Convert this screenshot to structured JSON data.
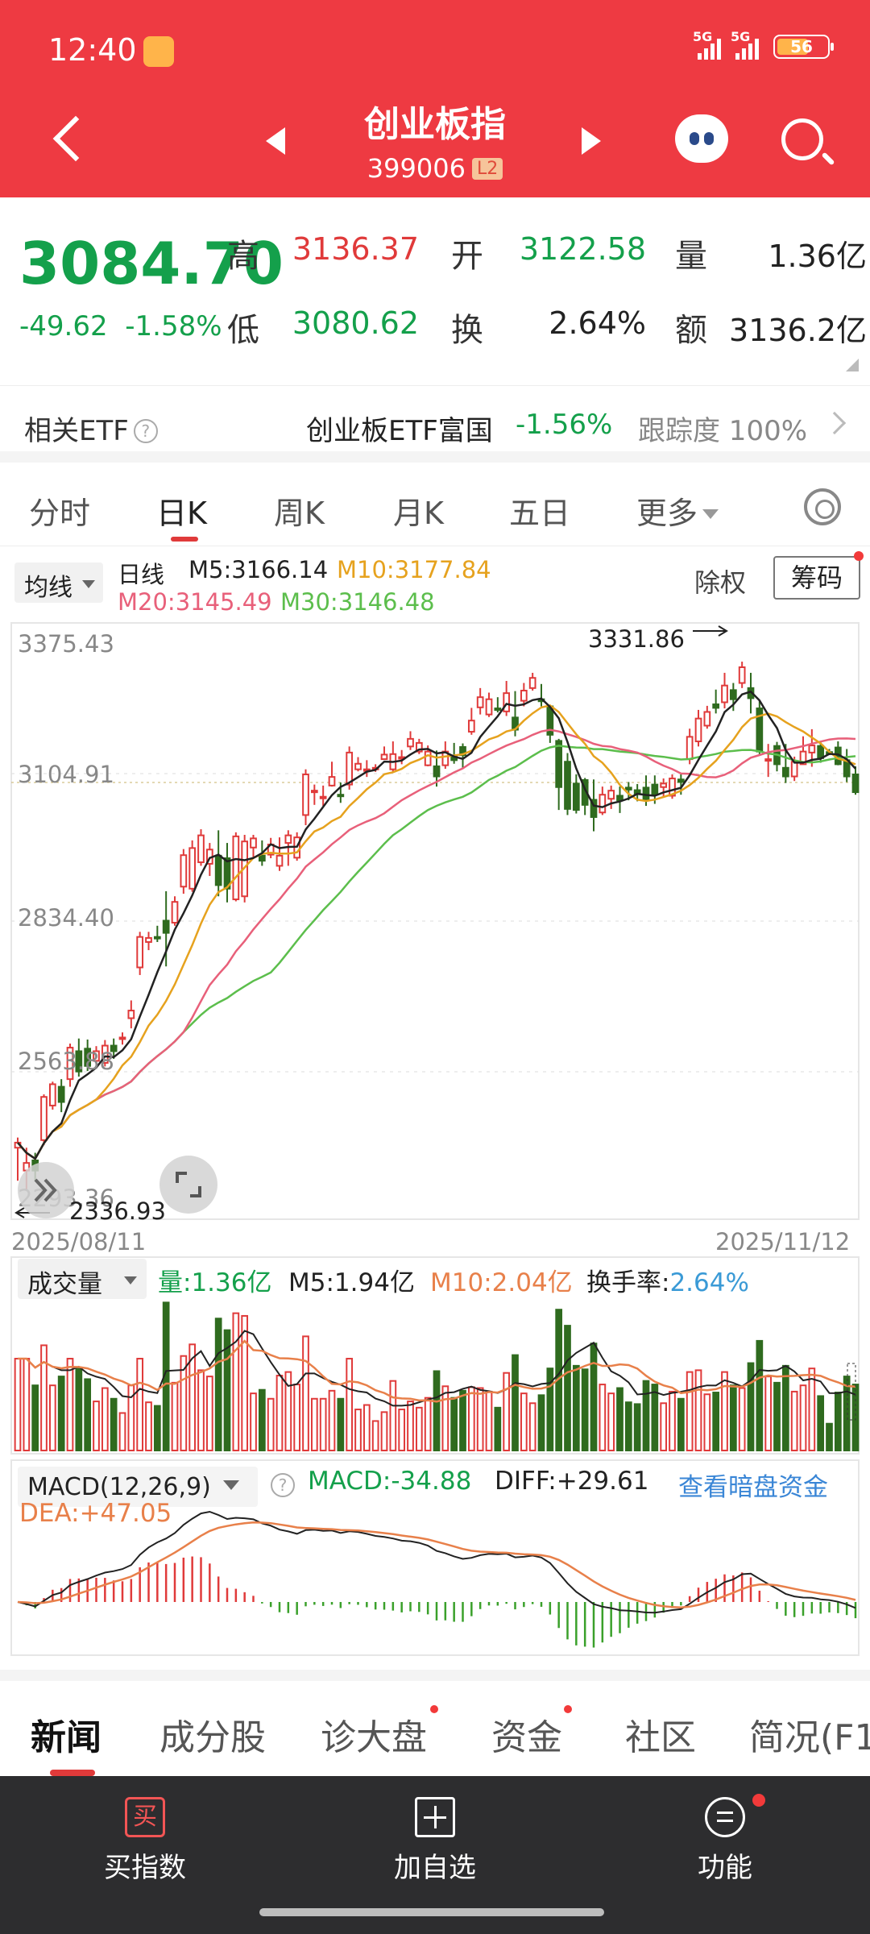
{
  "status": {
    "time": "12:40",
    "signal1": "5G",
    "signal2": "5G",
    "battery": "56"
  },
  "header": {
    "title": "创业板指",
    "code": "399006",
    "level_badge": "L2"
  },
  "quote": {
    "price": "3084.70",
    "change": "-49.62",
    "change_pct": "-1.58%",
    "high_label": "高",
    "high": "3136.37",
    "open_label": "开",
    "open": "3122.58",
    "volume_label": "量",
    "volume": "1.36亿",
    "low_label": "低",
    "low": "3080.62",
    "turnover_label": "换",
    "turnover": "2.64%",
    "amount_label": "额",
    "amount": "3136.2亿"
  },
  "etf": {
    "label": "相关ETF",
    "help": "?",
    "name": "创业板ETF富国",
    "change_pct": "-1.56%",
    "tracking": "跟踪度 100%"
  },
  "tabs": [
    {
      "label": "分时"
    },
    {
      "label": "日K"
    },
    {
      "label": "周K"
    },
    {
      "label": "月K"
    },
    {
      "label": "五日"
    },
    {
      "label": "更多"
    }
  ],
  "ma_legend": {
    "select": "均线",
    "period": "日线",
    "m5": "M5:3166.14",
    "m10": "M10:3177.84",
    "m20": "M20:3145.49",
    "m30": "M30:3146.48",
    "fq": "除权",
    "chip": "筹码"
  },
  "axis": {
    "y_labels": [
      "3375.43",
      "3104.91",
      "2834.40",
      "2563.88",
      "2293.36"
    ],
    "start_date": "2025/08/11",
    "end_date": "2025/11/12",
    "max_label": "3331.86",
    "min_label": "2336.93"
  },
  "volume_legend": {
    "select": "成交量",
    "vol": "量:1.36亿",
    "m5": "M5:1.94亿",
    "m10": "M10:2.04亿",
    "turnover_label": "换手率:",
    "turnover": "2.64%"
  },
  "macd_legend": {
    "select": "MACD(12,26,9)",
    "help": "?",
    "macd": "MACD:-34.88",
    "diff": "DIFF:+29.61",
    "dea": "DEA:+47.05",
    "link": "查看暗盘资金"
  },
  "news_tabs": [
    {
      "label": "新闻"
    },
    {
      "label": "成分股"
    },
    {
      "label": "诊大盘"
    },
    {
      "label": "资金"
    },
    {
      "label": "社区"
    },
    {
      "label": "简况(F1"
    }
  ],
  "bottom": {
    "buy_icon": "买",
    "buy": "买指数",
    "add": "加自选",
    "func": "功能"
  },
  "colors": {
    "up": "#e03a3a",
    "down": "#2f6b1f",
    "ma5": "#222222",
    "ma10": "#e6a21e",
    "ma20": "#e8607a",
    "ma30": "#5cbe4c"
  },
  "chart_data": {
    "type": "candlestick",
    "y_range": [
      2293.36,
      3375.43
    ],
    "candles": [
      [
        2385,
        2395,
        2320,
        2405
      ],
      [
        2340,
        2355,
        2300,
        2385
      ],
      [
        2360,
        2340,
        2320,
        2375
      ],
      [
        2400,
        2485,
        2390,
        2490
      ],
      [
        2468,
        2510,
        2460,
        2515
      ],
      [
        2505,
        2475,
        2455,
        2520
      ],
      [
        2520,
        2582,
        2505,
        2590
      ],
      [
        2575,
        2535,
        2525,
        2600
      ],
      [
        2580,
        2546,
        2536,
        2598
      ],
      [
        2556,
        2575,
        2548,
        2585
      ],
      [
        2552,
        2586,
        2545,
        2597
      ],
      [
        2586,
        2575,
        2560,
        2600
      ],
      [
        2600,
        2602,
        2588,
        2612
      ],
      [
        2640,
        2655,
        2620,
        2675
      ],
      [
        2740,
        2800,
        2725,
        2810
      ],
      [
        2790,
        2798,
        2774,
        2810
      ],
      [
        2800,
        2797,
        2790,
        2822
      ],
      [
        2832,
        2808,
        2742,
        2890
      ],
      [
        2828,
        2869,
        2822,
        2880
      ],
      [
        2899,
        2961,
        2885,
        2973
      ],
      [
        2895,
        2975,
        2889,
        2990
      ],
      [
        2947,
        3000,
        2940,
        3012
      ],
      [
        2944,
        2972,
        2920,
        2985
      ],
      [
        2960,
        2902,
        2880,
        3010
      ],
      [
        2955,
        2895,
        2868,
        2985
      ],
      [
        2874,
        2998,
        2870,
        3006
      ],
      [
        2880,
        2988,
        2868,
        3001
      ],
      [
        2976,
        2994,
        2955,
        3001
      ],
      [
        2960,
        2950,
        2940,
        2990
      ],
      [
        2962,
        2982,
        2955,
        2995
      ],
      [
        2940,
        2960,
        2930,
        2996
      ],
      [
        2985,
        3000,
        2940,
        3010
      ],
      [
        2956,
        2996,
        2950,
        3006
      ],
      [
        3040,
        3120,
        3020,
        3130
      ],
      [
        3085,
        3088,
        3060,
        3100
      ],
      [
        3074,
        3076,
        3058,
        3098
      ],
      [
        3098,
        3115,
        3096,
        3145
      ],
      [
        3080,
        3078,
        3064,
        3104
      ],
      [
        3100,
        3163,
        3090,
        3175
      ],
      [
        3130,
        3141,
        3126,
        3154
      ],
      [
        3130,
        3130,
        3115,
        3148
      ],
      [
        3132,
        3133,
        3125,
        3140
      ],
      [
        3150,
        3159,
        3150,
        3175
      ],
      [
        3130,
        3160,
        3125,
        3185
      ],
      [
        3151,
        3154,
        3140,
        3168
      ],
      [
        3175,
        3190,
        3168,
        3205
      ],
      [
        3165,
        3182,
        3160,
        3190
      ],
      [
        3138,
        3165,
        3136,
        3177
      ],
      [
        3136,
        3116,
        3096,
        3167
      ],
      [
        3138,
        3165,
        3131,
        3185
      ],
      [
        3155,
        3148,
        3141,
        3182
      ],
      [
        3174,
        3158,
        3132,
        3181
      ],
      [
        3204,
        3226,
        3198,
        3251
      ],
      [
        3252,
        3272,
        3238,
        3290
      ],
      [
        3238,
        3268,
        3233,
        3281
      ],
      [
        3250,
        3248,
        3242,
        3272
      ],
      [
        3244,
        3280,
        3235,
        3304
      ],
      [
        3232,
        3208,
        3195,
        3284
      ],
      [
        3265,
        3285,
        3254,
        3300
      ],
      [
        3290,
        3310,
        3285,
        3320
      ],
      [
        3268,
        3264,
        3254,
        3298
      ],
      [
        3254,
        3198,
        3182,
        3256
      ],
      [
        3186,
        3095,
        3050,
        3190
      ],
      [
        3145,
        3052,
        3040,
        3162
      ],
      [
        3102,
        3050,
        3043,
        3120
      ],
      [
        3109,
        3060,
        3040,
        3113
      ],
      [
        3070,
        3036,
        3008,
        3110
      ],
      [
        3045,
        3080,
        3040,
        3096
      ],
      [
        3072,
        3088,
        3052,
        3098
      ],
      [
        3078,
        3069,
        3044,
        3096
      ],
      [
        3094,
        3090,
        3069,
        3105
      ],
      [
        3089,
        3082,
        3067,
        3101
      ],
      [
        3094,
        3069,
        3058,
        3118
      ],
      [
        3100,
        3080,
        3062,
        3118
      ],
      [
        3095,
        3102,
        3077,
        3112
      ],
      [
        3078,
        3112,
        3072,
        3120
      ],
      [
        3110,
        3105,
        3080,
        3120
      ],
      [
        3150,
        3194,
        3140,
        3210
      ],
      [
        3185,
        3230,
        3175,
        3247
      ],
      [
        3216,
        3243,
        3210,
        3255
      ],
      [
        3258,
        3251,
        3240,
        3287
      ],
      [
        3262,
        3295,
        3250,
        3320
      ],
      [
        3286,
        3268,
        3245,
        3300
      ],
      [
        3300,
        3331,
        3290,
        3342
      ],
      [
        3290,
        3270,
        3240,
        3320
      ],
      [
        3250,
        3165,
        3160,
        3265
      ],
      [
        3148,
        3150,
        3115,
        3180
      ],
      [
        3176,
        3140,
        3126,
        3184
      ],
      [
        3133,
        3116,
        3103,
        3180
      ],
      [
        3116,
        3145,
        3107,
        3155
      ],
      [
        3140,
        3165,
        3140,
        3195
      ],
      [
        3163,
        3177,
        3135,
        3209
      ],
      [
        3176,
        3152,
        3143,
        3186
      ],
      [
        3164,
        3163,
        3158,
        3170
      ],
      [
        3173,
        3140,
        3138,
        3185
      ],
      [
        3148,
        3116,
        3105,
        3170
      ],
      [
        3120,
        3085,
        3080,
        3136
      ]
    ]
  }
}
